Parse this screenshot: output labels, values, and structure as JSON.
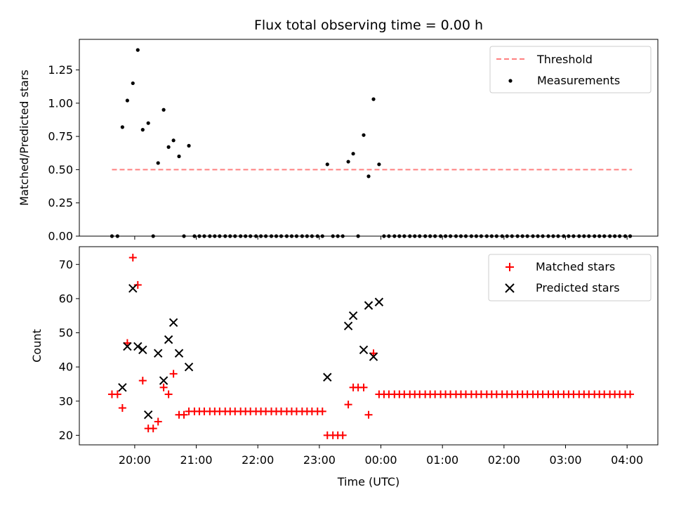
{
  "chart_data": {
    "title": "Flux total observing time = 0.00 h",
    "xlabel": "Time (UTC)",
    "x_unit": "hours UTC past midnight of the first night (20.0 = 20:00, 24.0 = 00:00, 28.0 = 04:00)",
    "xlim": [
      19.1,
      28.5
    ],
    "xticks": [
      20,
      21,
      22,
      23,
      24,
      25,
      26,
      27,
      28
    ],
    "xtick_labels": [
      "20:00",
      "21:00",
      "22:00",
      "23:00",
      "00:00",
      "01:00",
      "02:00",
      "03:00",
      "04:00"
    ],
    "panels": [
      {
        "type": "scatter",
        "ylabel": "Matched/Predicted stars",
        "ylim": [
          0,
          1.48
        ],
        "yticks": [
          0.0,
          0.25,
          0.5,
          0.75,
          1.0,
          1.25
        ],
        "ytick_labels": [
          "0.00",
          "0.25",
          "0.50",
          "0.75",
          "1.00",
          "1.25"
        ],
        "legend_position": "upper right",
        "threshold": {
          "name": "Threshold",
          "value": 0.5,
          "x_range": [
            19.63,
            28.08
          ],
          "color": "#ff8080",
          "style": "dashed"
        },
        "series": [
          {
            "name": "Measurements",
            "marker": "dot",
            "color": "#000000",
            "points": [
              [
                19.63,
                0.0
              ],
              [
                19.72,
                0.0
              ],
              [
                19.8,
                0.82
              ],
              [
                19.88,
                1.02
              ],
              [
                19.97,
                1.15
              ],
              [
                20.05,
                1.4
              ],
              [
                20.13,
                0.8
              ],
              [
                20.22,
                0.85
              ],
              [
                20.3,
                0.0
              ],
              [
                20.38,
                0.55
              ],
              [
                20.47,
                0.95
              ],
              [
                20.55,
                0.67
              ],
              [
                20.63,
                0.72
              ],
              [
                20.72,
                0.6
              ],
              [
                20.8,
                0.0
              ],
              [
                20.88,
                0.68
              ],
              [
                20.97,
                0.0
              ],
              [
                21.05,
                0.0
              ],
              [
                21.13,
                0.0
              ],
              [
                21.22,
                0.0
              ],
              [
                21.3,
                0.0
              ],
              [
                21.38,
                0.0
              ],
              [
                21.47,
                0.0
              ],
              [
                21.55,
                0.0
              ],
              [
                21.63,
                0.0
              ],
              [
                21.72,
                0.0
              ],
              [
                21.8,
                0.0
              ],
              [
                21.88,
                0.0
              ],
              [
                21.97,
                0.0
              ],
              [
                22.05,
                0.0
              ],
              [
                22.13,
                0.0
              ],
              [
                22.22,
                0.0
              ],
              [
                22.3,
                0.0
              ],
              [
                22.38,
                0.0
              ],
              [
                22.47,
                0.0
              ],
              [
                22.55,
                0.0
              ],
              [
                22.63,
                0.0
              ],
              [
                22.72,
                0.0
              ],
              [
                22.8,
                0.0
              ],
              [
                22.88,
                0.0
              ],
              [
                22.97,
                0.0
              ],
              [
                23.05,
                0.0
              ],
              [
                23.13,
                0.54
              ],
              [
                23.22,
                0.0
              ],
              [
                23.3,
                0.0
              ],
              [
                23.38,
                0.0
              ],
              [
                23.47,
                0.56
              ],
              [
                23.55,
                0.62
              ],
              [
                23.63,
                0.0
              ],
              [
                23.72,
                0.76
              ],
              [
                23.8,
                0.45
              ],
              [
                23.88,
                1.03
              ],
              [
                23.97,
                0.54
              ],
              [
                24.05,
                0.0
              ],
              [
                24.13,
                0.0
              ],
              [
                24.22,
                0.0
              ],
              [
                24.3,
                0.0
              ],
              [
                24.38,
                0.0
              ],
              [
                24.47,
                0.0
              ],
              [
                24.55,
                0.0
              ],
              [
                24.63,
                0.0
              ],
              [
                24.72,
                0.0
              ],
              [
                24.8,
                0.0
              ],
              [
                24.88,
                0.0
              ],
              [
                24.97,
                0.0
              ],
              [
                25.05,
                0.0
              ],
              [
                25.13,
                0.0
              ],
              [
                25.22,
                0.0
              ],
              [
                25.3,
                0.0
              ],
              [
                25.38,
                0.0
              ],
              [
                25.47,
                0.0
              ],
              [
                25.55,
                0.0
              ],
              [
                25.63,
                0.0
              ],
              [
                25.72,
                0.0
              ],
              [
                25.8,
                0.0
              ],
              [
                25.88,
                0.0
              ],
              [
                25.97,
                0.0
              ],
              [
                26.05,
                0.0
              ],
              [
                26.13,
                0.0
              ],
              [
                26.22,
                0.0
              ],
              [
                26.3,
                0.0
              ],
              [
                26.38,
                0.0
              ],
              [
                26.47,
                0.0
              ],
              [
                26.55,
                0.0
              ],
              [
                26.63,
                0.0
              ],
              [
                26.72,
                0.0
              ],
              [
                26.8,
                0.0
              ],
              [
                26.88,
                0.0
              ],
              [
                26.97,
                0.0
              ],
              [
                27.05,
                0.0
              ],
              [
                27.13,
                0.0
              ],
              [
                27.22,
                0.0
              ],
              [
                27.3,
                0.0
              ],
              [
                27.38,
                0.0
              ],
              [
                27.47,
                0.0
              ],
              [
                27.55,
                0.0
              ],
              [
                27.63,
                0.0
              ],
              [
                27.72,
                0.0
              ],
              [
                27.8,
                0.0
              ],
              [
                27.88,
                0.0
              ],
              [
                27.97,
                0.0
              ],
              [
                28.05,
                0.0
              ]
            ]
          }
        ]
      },
      {
        "type": "scatter",
        "ylabel": "Count",
        "ylim": [
          17.2,
          75.2
        ],
        "yticks": [
          20,
          30,
          40,
          50,
          60,
          70
        ],
        "ytick_labels": [
          "20",
          "30",
          "40",
          "50",
          "60",
          "70"
        ],
        "legend_position": "upper right",
        "series": [
          {
            "name": "Matched stars",
            "marker": "plus",
            "color": "#ff0000",
            "points": [
              [
                19.63,
                32
              ],
              [
                19.72,
                32
              ],
              [
                19.8,
                28
              ],
              [
                19.88,
                47
              ],
              [
                19.97,
                72
              ],
              [
                20.05,
                64
              ],
              [
                20.13,
                36
              ],
              [
                20.22,
                22
              ],
              [
                20.3,
                22
              ],
              [
                20.38,
                24
              ],
              [
                20.47,
                34
              ],
              [
                20.55,
                32
              ],
              [
                20.63,
                38
              ],
              [
                20.72,
                26
              ],
              [
                20.8,
                26
              ],
              [
                20.88,
                27
              ],
              [
                20.97,
                27
              ],
              [
                21.05,
                27
              ],
              [
                21.13,
                27
              ],
              [
                21.22,
                27
              ],
              [
                21.3,
                27
              ],
              [
                21.38,
                27
              ],
              [
                21.47,
                27
              ],
              [
                21.55,
                27
              ],
              [
                21.63,
                27
              ],
              [
                21.72,
                27
              ],
              [
                21.8,
                27
              ],
              [
                21.88,
                27
              ],
              [
                21.97,
                27
              ],
              [
                22.05,
                27
              ],
              [
                22.13,
                27
              ],
              [
                22.22,
                27
              ],
              [
                22.3,
                27
              ],
              [
                22.38,
                27
              ],
              [
                22.47,
                27
              ],
              [
                22.55,
                27
              ],
              [
                22.63,
                27
              ],
              [
                22.72,
                27
              ],
              [
                22.8,
                27
              ],
              [
                22.88,
                27
              ],
              [
                22.97,
                27
              ],
              [
                23.05,
                27
              ],
              [
                23.13,
                20
              ],
              [
                23.22,
                20
              ],
              [
                23.3,
                20
              ],
              [
                23.38,
                20
              ],
              [
                23.47,
                29
              ],
              [
                23.55,
                34
              ],
              [
                23.63,
                34
              ],
              [
                23.72,
                34
              ],
              [
                23.8,
                26
              ],
              [
                23.88,
                44
              ],
              [
                23.97,
                32
              ],
              [
                24.05,
                32
              ],
              [
                24.13,
                32
              ],
              [
                24.22,
                32
              ],
              [
                24.3,
                32
              ],
              [
                24.38,
                32
              ],
              [
                24.47,
                32
              ],
              [
                24.55,
                32
              ],
              [
                24.63,
                32
              ],
              [
                24.72,
                32
              ],
              [
                24.8,
                32
              ],
              [
                24.88,
                32
              ],
              [
                24.97,
                32
              ],
              [
                25.05,
                32
              ],
              [
                25.13,
                32
              ],
              [
                25.22,
                32
              ],
              [
                25.3,
                32
              ],
              [
                25.38,
                32
              ],
              [
                25.47,
                32
              ],
              [
                25.55,
                32
              ],
              [
                25.63,
                32
              ],
              [
                25.72,
                32
              ],
              [
                25.8,
                32
              ],
              [
                25.88,
                32
              ],
              [
                25.97,
                32
              ],
              [
                26.05,
                32
              ],
              [
                26.13,
                32
              ],
              [
                26.22,
                32
              ],
              [
                26.3,
                32
              ],
              [
                26.38,
                32
              ],
              [
                26.47,
                32
              ],
              [
                26.55,
                32
              ],
              [
                26.63,
                32
              ],
              [
                26.72,
                32
              ],
              [
                26.8,
                32
              ],
              [
                26.88,
                32
              ],
              [
                26.97,
                32
              ],
              [
                27.05,
                32
              ],
              [
                27.13,
                32
              ],
              [
                27.22,
                32
              ],
              [
                27.3,
                32
              ],
              [
                27.38,
                32
              ],
              [
                27.47,
                32
              ],
              [
                27.55,
                32
              ],
              [
                27.63,
                32
              ],
              [
                27.72,
                32
              ],
              [
                27.8,
                32
              ],
              [
                27.88,
                32
              ],
              [
                27.97,
                32
              ],
              [
                28.05,
                32
              ]
            ]
          },
          {
            "name": "Predicted stars",
            "marker": "x",
            "color": "#000000",
            "points": [
              [
                19.8,
                34
              ],
              [
                19.88,
                46
              ],
              [
                19.97,
                63
              ],
              [
                20.05,
                46
              ],
              [
                20.13,
                45
              ],
              [
                20.22,
                26
              ],
              [
                20.38,
                44
              ],
              [
                20.47,
                36
              ],
              [
                20.55,
                48
              ],
              [
                20.63,
                53
              ],
              [
                20.72,
                44
              ],
              [
                20.88,
                40
              ],
              [
                23.13,
                37
              ],
              [
                23.47,
                52
              ],
              [
                23.55,
                55
              ],
              [
                23.72,
                45
              ],
              [
                23.8,
                58
              ],
              [
                23.88,
                43
              ],
              [
                23.97,
                59
              ]
            ]
          }
        ]
      }
    ]
  }
}
